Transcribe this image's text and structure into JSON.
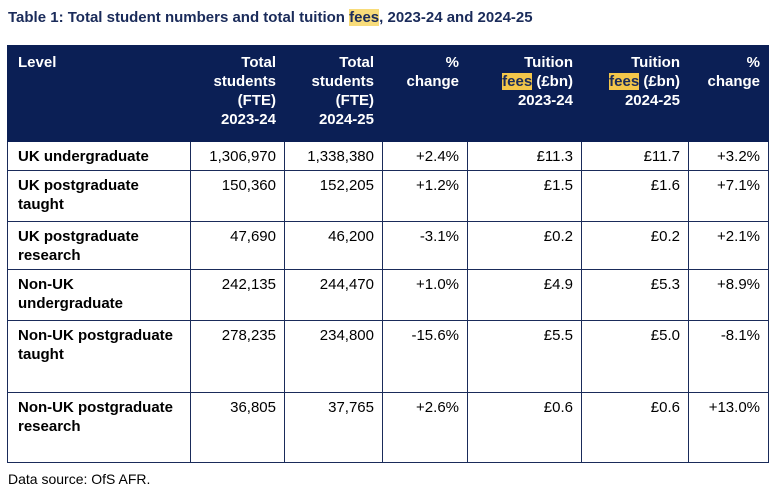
{
  "title": {
    "before": "Table 1: Total student numbers and total tuition ",
    "highlight": "fees",
    "after": ", 2023-24 and 2024-25"
  },
  "table": {
    "headers": [
      {
        "lines": [
          "Level"
        ]
      },
      {
        "lines": [
          "Total",
          "students",
          "(FTE)",
          "2023-24"
        ]
      },
      {
        "lines": [
          "Total",
          "students",
          "(FTE)",
          "2024-25"
        ]
      },
      {
        "lines": [
          "%",
          "change"
        ]
      },
      {
        "lines": [
          "Tuition",
          "fees (£bn)",
          "2023-24"
        ]
      },
      {
        "lines": [
          "Tuition",
          "fees (£bn)",
          "2024-25"
        ]
      },
      {
        "lines": [
          "%",
          "change"
        ]
      }
    ],
    "highlight_word": "fees",
    "rows": [
      {
        "level": "UK undergraduate",
        "students_2023": "1,306,970",
        "students_2024": "1,338,380",
        "students_change": "+2.4%",
        "fees_2023": "£11.3",
        "fees_2024": "£11.7",
        "fees_change": "+3.2%"
      },
      {
        "level": "UK postgraduate taught",
        "students_2023": "150,360",
        "students_2024": "152,205",
        "students_change": "+1.2%",
        "fees_2023": "£1.5",
        "fees_2024": "£1.6",
        "fees_change": "+7.1%"
      },
      {
        "level": "UK postgraduate research",
        "students_2023": "47,690",
        "students_2024": "46,200",
        "students_change": "-3.1%",
        "fees_2023": "£0.2",
        "fees_2024": "£0.2",
        "fees_change": "+2.1%"
      },
      {
        "level": "Non-UK undergraduate",
        "students_2023": "242,135",
        "students_2024": "244,470",
        "students_change": "+1.0%",
        "fees_2023": "£4.9",
        "fees_2024": "£5.3",
        "fees_change": "+8.9%"
      },
      {
        "level": "Non-UK postgraduate taught",
        "students_2023": "278,235",
        "students_2024": "234,800",
        "students_change": "-15.6%",
        "fees_2023": "£5.5",
        "fees_2024": "£5.0",
        "fees_change": "-8.1%"
      },
      {
        "level": "Non-UK postgraduate research",
        "students_2023": "36,805",
        "students_2024": "37,765",
        "students_change": "+2.6%",
        "fees_2023": "£0.6",
        "fees_2024": "£0.6",
        "fees_change": "+13.0%"
      }
    ]
  },
  "source": "Data source: OfS AFR.",
  "colors": {
    "header_bg": "#0b1f55",
    "header_text": "#ffffff",
    "title_text": "#1a2b5a",
    "highlight": "#f8dc7a"
  }
}
